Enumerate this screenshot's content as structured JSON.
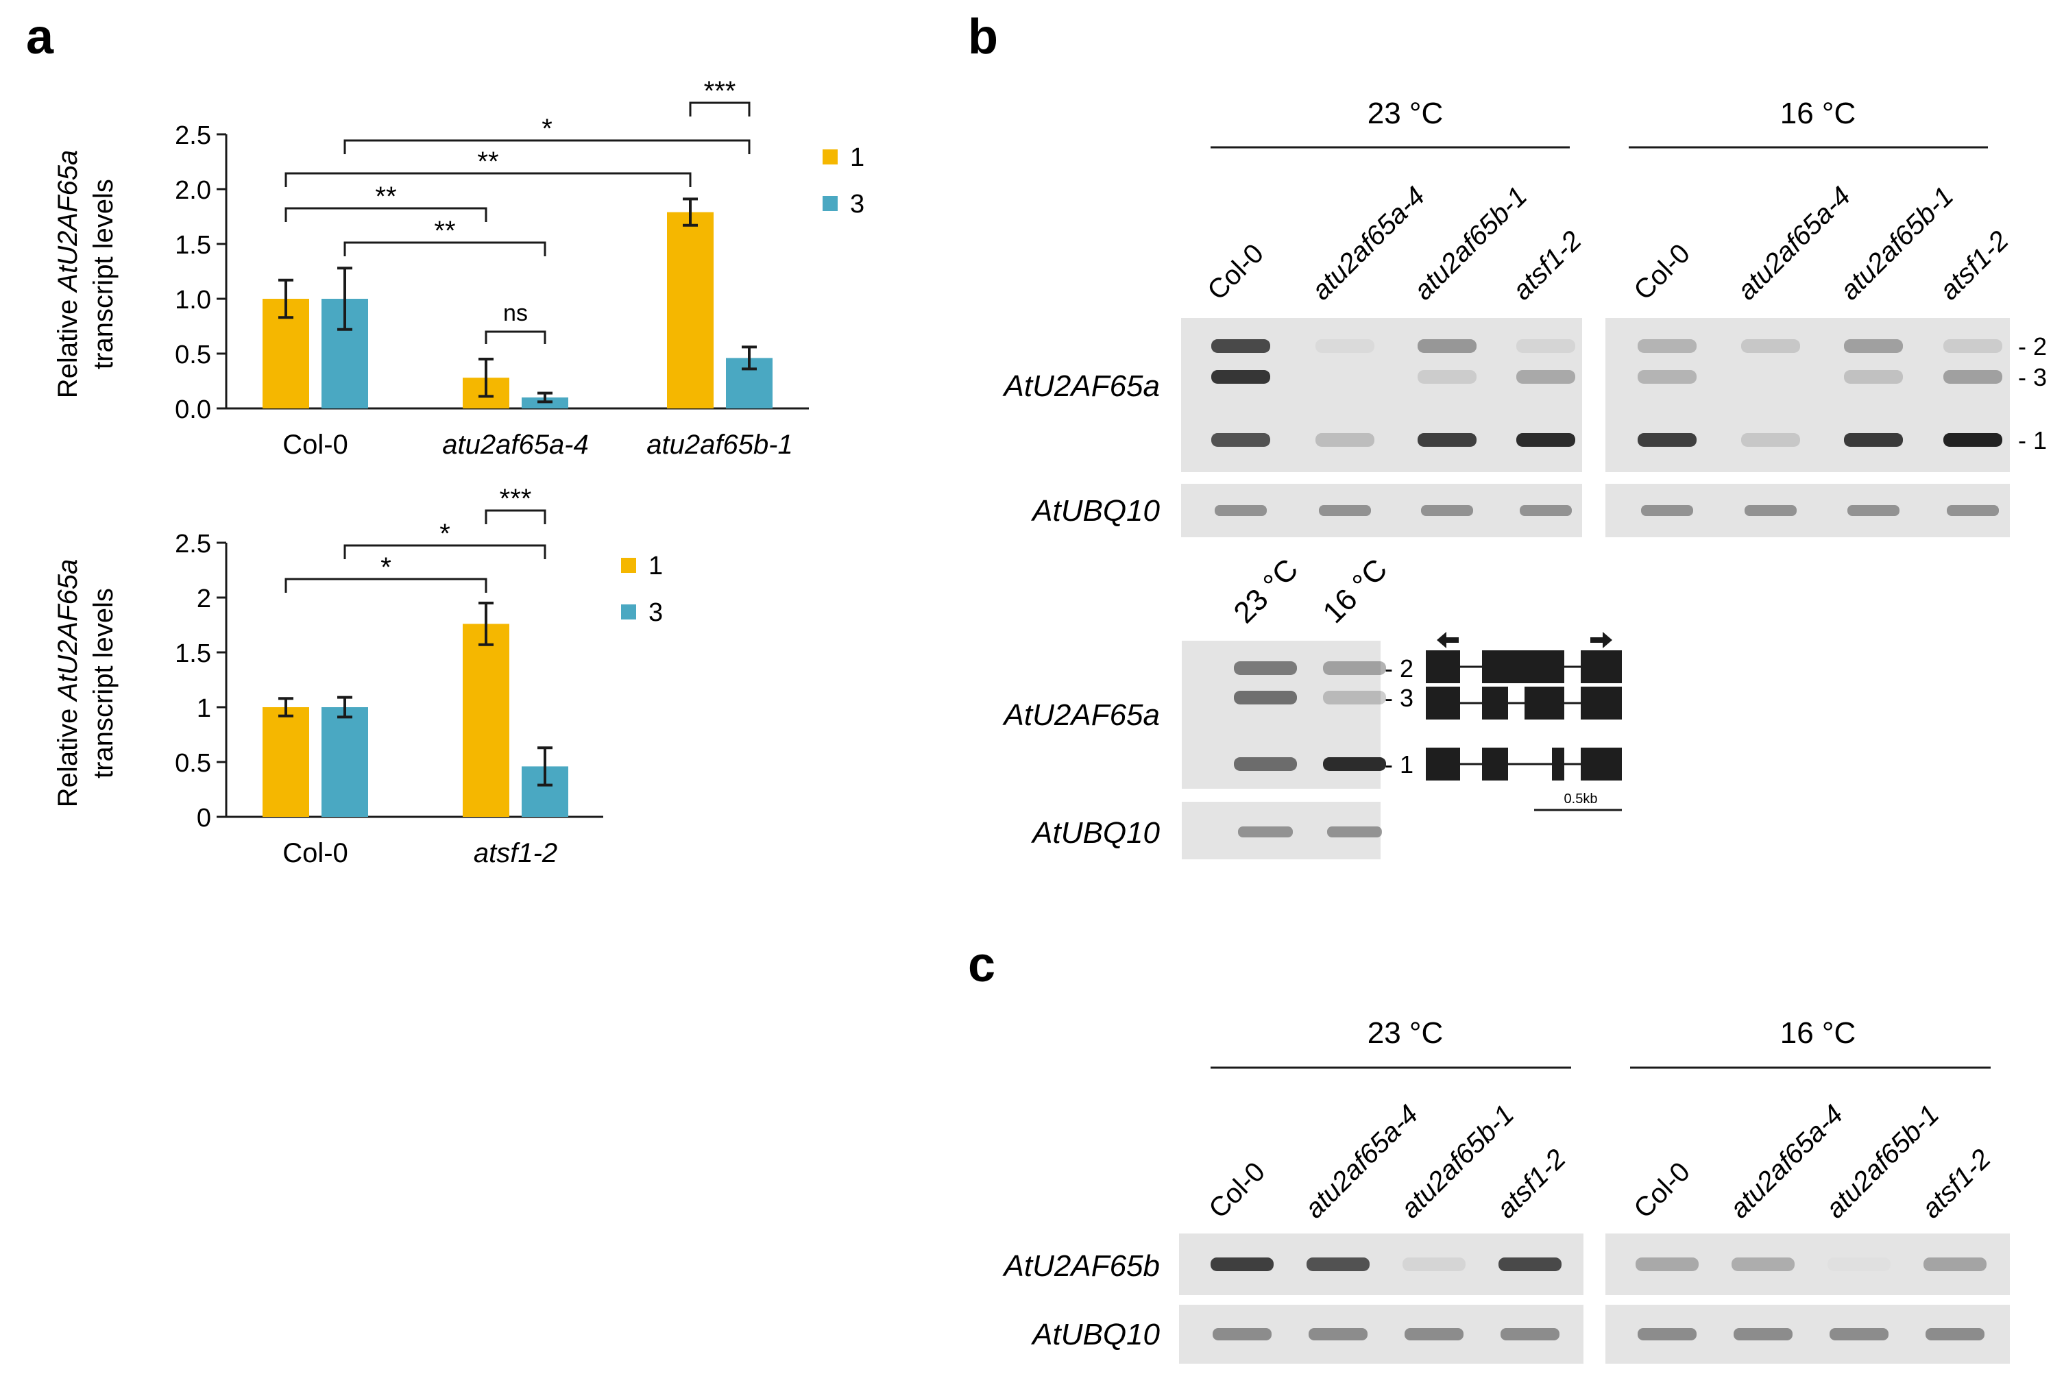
{
  "panels": {
    "a": "a",
    "b": "b",
    "c": "c"
  },
  "colors": {
    "series1": "#f5b700",
    "series3": "#4aa8c2",
    "axis": "#1a1a1a",
    "gel_bg": "#e4e4e4",
    "band": "#222222"
  },
  "chart_data": [
    {
      "type": "bar",
      "title": "",
      "ylabel_prefix": "Relative ",
      "ylabel_gene": "AtU2AF65a",
      "ylabel_line2": "transcript levels",
      "ylim": [
        0,
        2.5
      ],
      "yticks": [
        "0.0",
        "0.5",
        "1.0",
        "1.5",
        "2.0",
        "2.5"
      ],
      "categories": [
        "Col-0",
        "atu2af65a-4",
        "atu2af65b-1"
      ],
      "series": [
        {
          "name": "1",
          "values": [
            1.0,
            0.28,
            1.79
          ],
          "errors": [
            0.17,
            0.17,
            0.12
          ]
        },
        {
          "name": "3",
          "values": [
            1.0,
            0.1,
            0.46
          ],
          "errors": [
            0.28,
            0.04,
            0.1
          ]
        }
      ],
      "legend_position": "top-right",
      "significance": [
        {
          "label": "*",
          "from": "Col-0 / 3",
          "to": "atu2af65b-1 / 3"
        },
        {
          "label": "***",
          "from": "atu2af65b-1 / 1",
          "to": "atu2af65b-1 / 3"
        },
        {
          "label": "**",
          "from": "Col-0 / 1",
          "to": "atu2af65b-1 / 1"
        },
        {
          "label": "**",
          "from": "Col-0 / 1",
          "to": "atu2af65a-4 / 1"
        },
        {
          "label": "**",
          "from": "Col-0 / 3",
          "to": "atu2af65a-4 / 3"
        },
        {
          "label": "ns",
          "from": "atu2af65a-4 / 1",
          "to": "atu2af65a-4 / 3"
        }
      ]
    },
    {
      "type": "bar",
      "title": "",
      "ylabel_prefix": "Relative ",
      "ylabel_gene": "AtU2AF65a",
      "ylabel_line2": "transcript levels",
      "ylim": [
        0,
        2.5
      ],
      "yticks": [
        "0",
        "0.5",
        "1",
        "1.5",
        "2",
        "2.5"
      ],
      "categories": [
        "Col-0",
        "atsf1-2"
      ],
      "series": [
        {
          "name": "1",
          "values": [
            1.0,
            1.76
          ],
          "errors": [
            0.08,
            0.19
          ]
        },
        {
          "name": "3",
          "values": [
            1.0,
            0.46
          ],
          "errors": [
            0.09,
            0.17
          ]
        }
      ],
      "legend_position": "top-right",
      "significance": [
        {
          "label": "*",
          "from": "Col-0 / 3",
          "to": "atsf1-2 / 3"
        },
        {
          "label": "***",
          "from": "atsf1-2 / 1",
          "to": "atsf1-2 / 3"
        },
        {
          "label": "*",
          "from": "Col-0 / 1",
          "to": "atsf1-2 / 1"
        }
      ]
    }
  ],
  "gel_b": {
    "temps": [
      "23 °C",
      "16 °C"
    ],
    "lanes": [
      "Col-0",
      "atu2af65a-4",
      "atu2af65b-1",
      "atsf1-2"
    ],
    "genes": [
      "AtU2AF65a",
      "AtUBQ10"
    ],
    "band_labels": [
      "2",
      "3",
      "1"
    ]
  },
  "gel_b2": {
    "lanes": [
      "23 °C",
      "16 °C"
    ],
    "genes": [
      "AtU2AF65a",
      "AtUBQ10"
    ],
    "band_labels": [
      "2",
      "3",
      "1"
    ],
    "scale_label": "0.5kb"
  },
  "gel_c": {
    "temps": [
      "23 °C",
      "16 °C"
    ],
    "lanes": [
      "Col-0",
      "atu2af65a-4",
      "atu2af65b-1",
      "atsf1-2"
    ],
    "genes": [
      "AtU2AF65b",
      "AtUBQ10"
    ]
  }
}
